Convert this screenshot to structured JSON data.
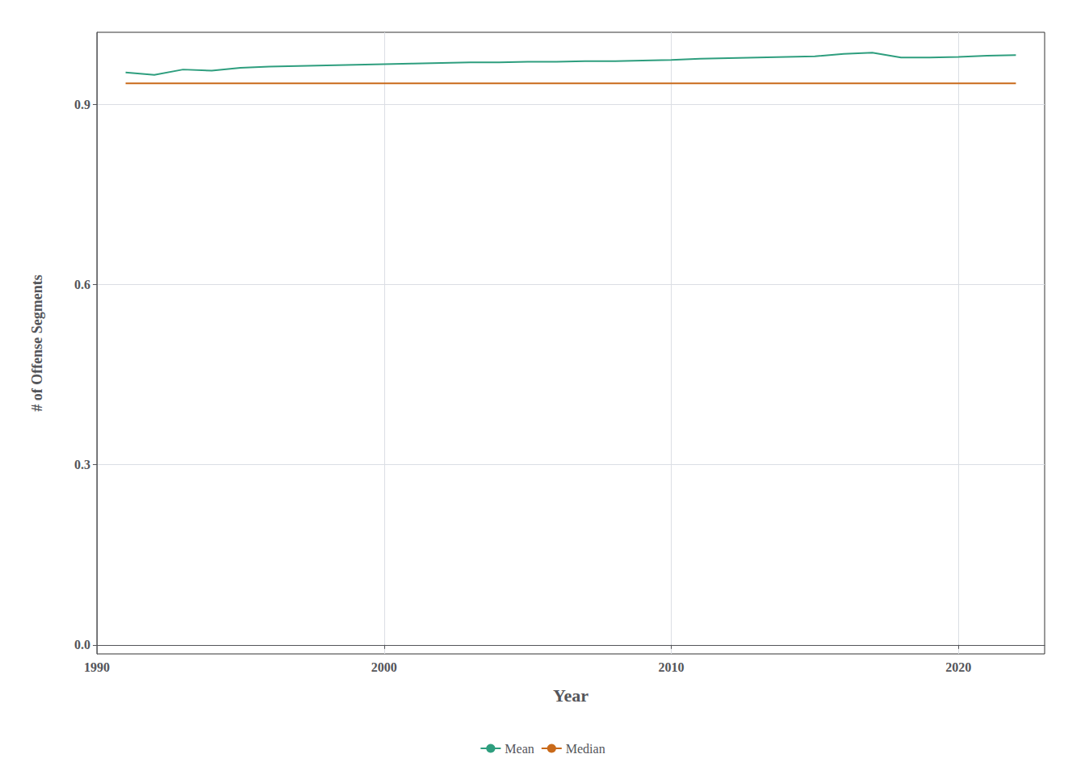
{
  "chart_data": {
    "type": "line",
    "xlabel": "Year",
    "ylabel": "# of Offense Segments",
    "x": [
      1991,
      1992,
      1993,
      1994,
      1995,
      1996,
      1997,
      1998,
      1999,
      2000,
      2001,
      2002,
      2003,
      2004,
      2005,
      2006,
      2007,
      2008,
      2009,
      2010,
      2011,
      2012,
      2013,
      2014,
      2015,
      2016,
      2017,
      2018,
      2019,
      2020,
      2021,
      2022
    ],
    "series": [
      {
        "name": "Mean",
        "color": "#2E9E7E",
        "values": [
          0.953,
          0.949,
          0.958,
          0.956,
          0.961,
          0.963,
          0.964,
          0.965,
          0.966,
          0.967,
          0.968,
          0.969,
          0.97,
          0.97,
          0.971,
          0.971,
          0.972,
          0.972,
          0.973,
          0.974,
          0.976,
          0.977,
          0.978,
          0.979,
          0.98,
          0.984,
          0.986,
          0.978,
          0.978,
          0.979,
          0.981,
          0.982
        ]
      },
      {
        "name": "Median",
        "color": "#C96A1A",
        "values": [
          0.935,
          0.935,
          0.935,
          0.935,
          0.935,
          0.935,
          0.935,
          0.935,
          0.935,
          0.935,
          0.935,
          0.935,
          0.935,
          0.935,
          0.935,
          0.935,
          0.935,
          0.935,
          0.935,
          0.935,
          0.935,
          0.935,
          0.935,
          0.935,
          0.935,
          0.935,
          0.935,
          0.935,
          0.935,
          0.935,
          0.935,
          0.935
        ]
      }
    ],
    "xlim": [
      1990,
      2023
    ],
    "ylim": [
      -0.015,
      1.02
    ],
    "xticks": [
      1990,
      2000,
      2010,
      2020
    ],
    "yticks": [
      {
        "value": 0,
        "label": "0.0"
      },
      0.3,
      0.6,
      0.9
    ],
    "grid": true,
    "legend": "bottom"
  }
}
